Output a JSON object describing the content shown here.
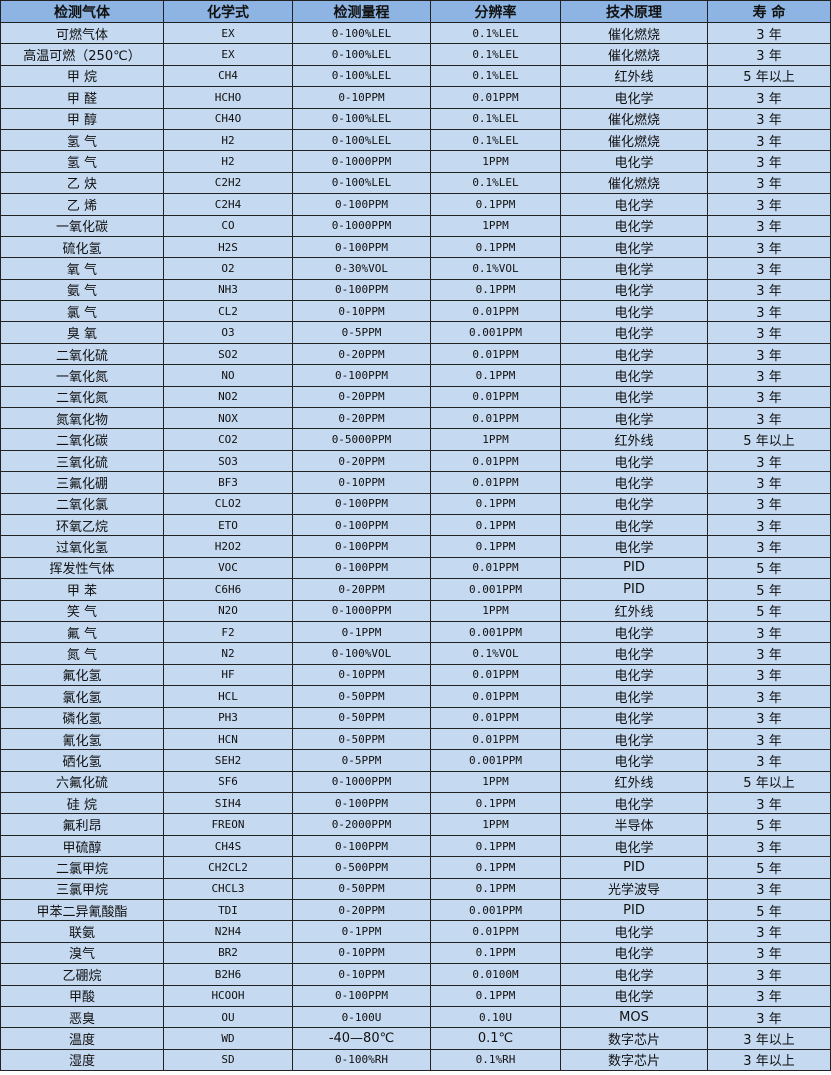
{
  "colors": {
    "header_bg": "#8DB4E2",
    "cell_bg": "#C5D9F1",
    "border": "#222222"
  },
  "headers": [
    "检测气体",
    "化学式",
    "检测量程",
    "分辨率",
    "技术原理",
    "寿 命"
  ],
  "rows": [
    [
      "可燃气体",
      "EX",
      "0-100%LEL",
      "0.1%LEL",
      "催化燃烧",
      "3 年"
    ],
    [
      "高温可燃（250℃）",
      "EX",
      "0-100%LEL",
      "0.1%LEL",
      "催化燃烧",
      "3 年"
    ],
    [
      "甲 烷",
      "CH4",
      "0-100%LEL",
      "0.1%LEL",
      "红外线",
      "5 年以上"
    ],
    [
      "甲 醛",
      "HCHO",
      "0-10PPM",
      "0.01PPM",
      "电化学",
      "3 年"
    ],
    [
      "甲 醇",
      "CH4O",
      "0-100%LEL",
      "0.1%LEL",
      "催化燃烧",
      "3 年"
    ],
    [
      "氢 气",
      "H2",
      "0-100%LEL",
      "0.1%LEL",
      "催化燃烧",
      "3 年"
    ],
    [
      "氢 气",
      "H2",
      "0-1000PPM",
      "1PPM",
      "电化学",
      "3 年"
    ],
    [
      "乙 炔",
      "C2H2",
      "0-100%LEL",
      "0.1%LEL",
      "催化燃烧",
      "3 年"
    ],
    [
      "乙 烯",
      "C2H4",
      "0-100PPM",
      "0.1PPM",
      "电化学",
      "3 年"
    ],
    [
      "一氧化碳",
      "CO",
      "0-1000PPM",
      "1PPM",
      "电化学",
      "3 年"
    ],
    [
      "硫化氢",
      "H2S",
      "0-100PPM",
      "0.1PPM",
      "电化学",
      "3 年"
    ],
    [
      "氧 气",
      "O2",
      "0-30%VOL",
      "0.1%VOL",
      "电化学",
      "3 年"
    ],
    [
      "氨 气",
      "NH3",
      "0-100PPM",
      "0.1PPM",
      "电化学",
      "3 年"
    ],
    [
      "氯 气",
      "CL2",
      "0-10PPM",
      "0.01PPM",
      "电化学",
      "3 年"
    ],
    [
      "臭 氧",
      "O3",
      "0-5PPM",
      "0.001PPM",
      "电化学",
      "3 年"
    ],
    [
      "二氧化硫",
      "SO2",
      "0-20PPM",
      "0.01PPM",
      "电化学",
      "3 年"
    ],
    [
      "一氧化氮",
      "NO",
      "0-100PPM",
      "0.1PPM",
      "电化学",
      "3 年"
    ],
    [
      "二氧化氮",
      "NO2",
      "0-20PPM",
      "0.01PPM",
      "电化学",
      "3 年"
    ],
    [
      "氮氧化物",
      "NOX",
      "0-20PPM",
      "0.01PPM",
      "电化学",
      "3 年"
    ],
    [
      "二氧化碳",
      "CO2",
      "0-5000PPM",
      "1PPM",
      "红外线",
      "5 年以上"
    ],
    [
      "三氧化硫",
      "SO3",
      "0-20PPM",
      "0.01PPM",
      "电化学",
      "3 年"
    ],
    [
      "三氟化硼",
      "BF3",
      "0-10PPM",
      "0.01PPM",
      "电化学",
      "3 年"
    ],
    [
      "二氧化氯",
      "CLO2",
      "0-100PPM",
      "0.1PPM",
      "电化学",
      "3 年"
    ],
    [
      "环氧乙烷",
      "ETO",
      "0-100PPM",
      "0.1PPM",
      "电化学",
      "3 年"
    ],
    [
      "过氧化氢",
      "H2O2",
      "0-100PPM",
      "0.1PPM",
      "电化学",
      "3 年"
    ],
    [
      "挥发性气体",
      "VOC",
      "0-100PPM",
      "0.01PPM",
      "PID",
      "5 年"
    ],
    [
      "甲 苯",
      "C6H6",
      "0-20PPM",
      "0.001PPM",
      "PID",
      "5 年"
    ],
    [
      "笑 气",
      "N2O",
      "0-1000PPM",
      "1PPM",
      "红外线",
      "5 年"
    ],
    [
      "氟 气",
      "F2",
      "0-1PPM",
      "0.001PPM",
      "电化学",
      "3 年"
    ],
    [
      "氮 气",
      "N2",
      "0-100%VOL",
      "0.1%VOL",
      "电化学",
      "3 年"
    ],
    [
      "氟化氢",
      "HF",
      "0-10PPM",
      "0.01PPM",
      "电化学",
      "3 年"
    ],
    [
      "氯化氢",
      "HCL",
      "0-50PPM",
      "0.01PPM",
      "电化学",
      "3 年"
    ],
    [
      "磷化氢",
      "PH3",
      "0-50PPM",
      "0.01PPM",
      "电化学",
      "3 年"
    ],
    [
      "氰化氢",
      "HCN",
      "0-50PPM",
      "0.01PPM",
      "电化学",
      "3 年"
    ],
    [
      "硒化氢",
      "SEH2",
      "0-5PPM",
      "0.001PPM",
      "电化学",
      "3 年"
    ],
    [
      "六氟化硫",
      "SF6",
      "0-1000PPM",
      "1PPM",
      "红外线",
      "5 年以上"
    ],
    [
      "硅 烷",
      "SIH4",
      "0-100PPM",
      "0.1PPM",
      "电化学",
      "3 年"
    ],
    [
      "氟利昂",
      "FREON",
      "0-2000PPM",
      "1PPM",
      "半导体",
      "5 年"
    ],
    [
      "甲硫醇",
      "CH4S",
      "0-100PPM",
      "0.1PPM",
      "电化学",
      "3 年"
    ],
    [
      "二氯甲烷",
      "CH2CL2",
      "0-500PPM",
      "0.1PPM",
      "PID",
      "5 年"
    ],
    [
      "三氯甲烷",
      "CHCL3",
      "0-50PPM",
      "0.1PPM",
      "光学波导",
      "3 年"
    ],
    [
      "甲苯二异氰酸酯",
      "TDI",
      "0-20PPM",
      "0.001PPM",
      "PID",
      "5 年"
    ],
    [
      "联氨",
      "N2H4",
      "0-1PPM",
      "0.01PPM",
      "电化学",
      "3 年"
    ],
    [
      "溴气",
      "BR2",
      "0-10PPM",
      "0.1PPM",
      "电化学",
      "3 年"
    ],
    [
      "乙硼烷",
      "B2H6",
      "0-10PPM",
      "0.0100M",
      "电化学",
      "3 年"
    ],
    [
      "甲酸",
      "HCOOH",
      "0-100PPM",
      "0.1PPM",
      "电化学",
      "3 年"
    ],
    [
      "恶臭",
      "OU",
      "0-100U",
      "0.10U",
      "MOS",
      "3 年"
    ],
    [
      "温度",
      "WD",
      "-40—80℃",
      "0.1℃",
      "数字芯片",
      "3 年以上"
    ],
    [
      "湿度",
      "SD",
      "0-100%RH",
      "0.1%RH",
      "数字芯片",
      "3 年以上"
    ]
  ]
}
